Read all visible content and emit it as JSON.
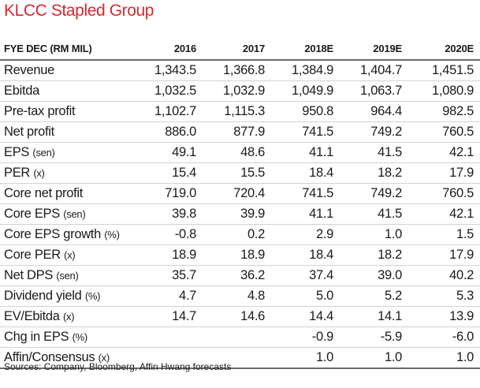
{
  "title": "KLCC Stapled Group",
  "header": {
    "label": "FYE DEC (RM MIL)",
    "years": [
      "2016",
      "2017",
      "2018E",
      "2019E",
      "2020E"
    ]
  },
  "rows": [
    {
      "label": "Revenue",
      "unit": "",
      "values": [
        "1,343.5",
        "1,366.8",
        "1,384.9",
        "1,404.7",
        "1,451.5"
      ]
    },
    {
      "label": "Ebitda",
      "unit": "",
      "values": [
        "1,032.5",
        "1,032.9",
        "1,049.9",
        "1,063.7",
        "1,080.9"
      ]
    },
    {
      "label": "Pre-tax profit",
      "unit": "",
      "values": [
        "1,102.7",
        "1,115.3",
        "950.8",
        "964.4",
        "982.5"
      ]
    },
    {
      "label": "Net profit",
      "unit": "",
      "values": [
        "886.0",
        "877.9",
        "741.5",
        "749.2",
        "760.5"
      ]
    },
    {
      "label": "EPS",
      "unit": "(sen)",
      "values": [
        "49.1",
        "48.6",
        "41.1",
        "41.5",
        "42.1"
      ]
    },
    {
      "label": "PER",
      "unit": "(x)",
      "values": [
        "15.4",
        "15.5",
        "18.4",
        "18.2",
        "17.9"
      ]
    },
    {
      "label": "Core net profit",
      "unit": "",
      "values": [
        "719.0",
        "720.4",
        "741.5",
        "749.2",
        "760.5"
      ]
    },
    {
      "label": "Core EPS",
      "unit": "(sen)",
      "values": [
        "39.8",
        "39.9",
        "41.1",
        "41.5",
        "42.1"
      ]
    },
    {
      "label": "Core EPS growth",
      "unit": "(%)",
      "values": [
        "-0.8",
        "0.2",
        "2.9",
        "1.0",
        "1.5"
      ]
    },
    {
      "label": "Core PER",
      "unit": "(x)",
      "values": [
        "18.9",
        "18.9",
        "18.4",
        "18.2",
        "17.9"
      ]
    },
    {
      "label": "Net DPS",
      "unit": "(sen)",
      "values": [
        "35.7",
        "36.2",
        "37.4",
        "39.0",
        "40.2"
      ]
    },
    {
      "label": "Dividend yield",
      "unit": "(%)",
      "values": [
        "4.7",
        "4.8",
        "5.0",
        "5.2",
        "5.3"
      ]
    },
    {
      "label": "EV/Ebitda",
      "unit": "(x)",
      "values": [
        "14.7",
        "14.6",
        "14.4",
        "14.1",
        "13.9"
      ]
    },
    {
      "label": "Chg in EPS",
      "unit": "(%)",
      "values": [
        "",
        "",
        "-0.9",
        "-5.9",
        "-6.0"
      ]
    },
    {
      "label": "Affin/Consensus",
      "unit": "(x)",
      "values": [
        "",
        "",
        "1.0",
        "1.0",
        "1.0"
      ]
    }
  ],
  "source": "Sources: Company, Bloomberg, Affin Hwang forecasts"
}
